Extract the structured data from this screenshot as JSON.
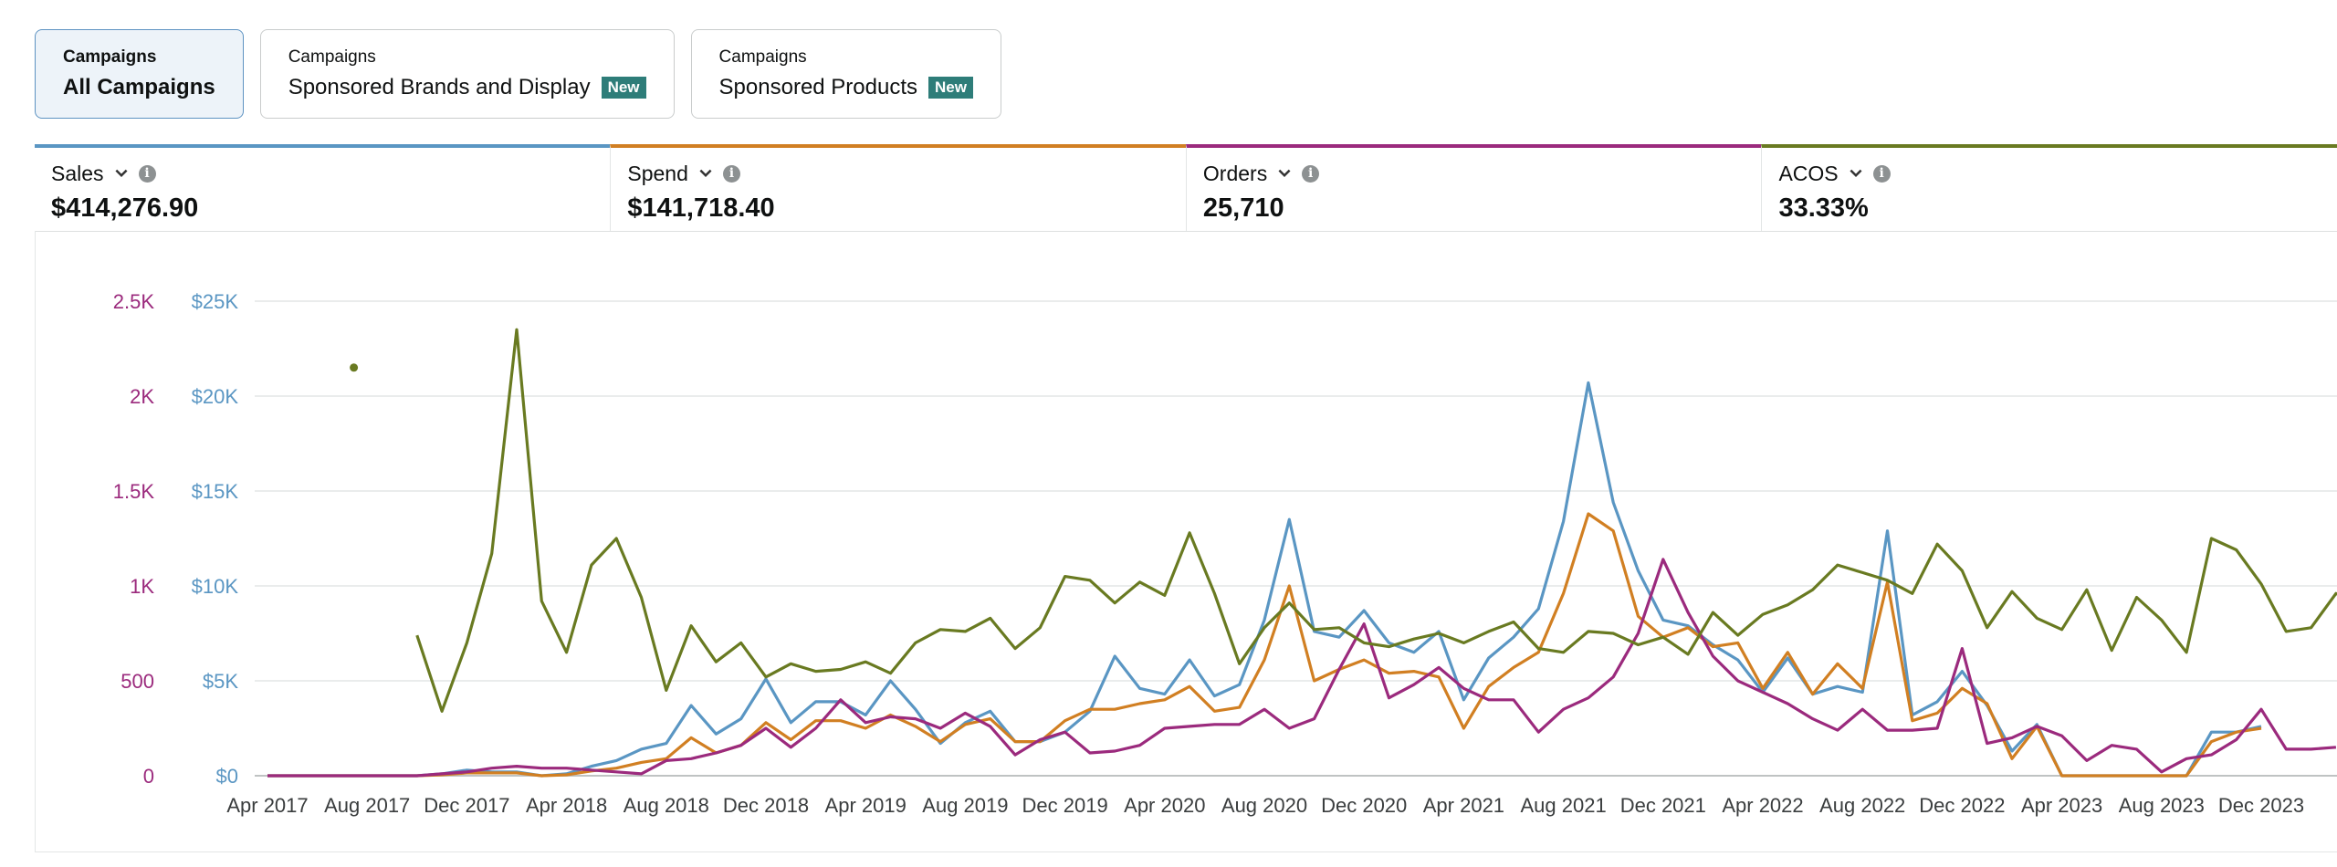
{
  "tabs": [
    {
      "small": "Campaigns",
      "main": "All Campaigns",
      "badge": "",
      "active": true
    },
    {
      "small": "Campaigns",
      "main": "Sponsored Brands and Display",
      "badge": "New",
      "active": false
    },
    {
      "small": "Campaigns",
      "main": "Sponsored Products",
      "badge": "New",
      "active": false
    }
  ],
  "metrics": [
    {
      "label": "Sales",
      "value": "$414,276.90",
      "color": "#5a96c3"
    },
    {
      "label": "Spend",
      "value": "$141,718.40",
      "color": "#d17f22"
    },
    {
      "label": "Orders",
      "value": "25,710",
      "color": "#9b2a7d"
    },
    {
      "label": "ACOS",
      "value": "33.33%",
      "color": "#697a21"
    }
  ],
  "chart_data": {
    "type": "line",
    "x_tick_labels": [
      "Apr 2017",
      "Aug 2017",
      "Dec 2017",
      "Apr 2018",
      "Aug 2018",
      "Dec 2018",
      "Apr 2019",
      "Aug 2019",
      "Dec 2019",
      "Apr 2020",
      "Aug 2020",
      "Dec 2020",
      "Apr 2021",
      "Aug 2021",
      "Dec 2021",
      "Apr 2022",
      "Aug 2022",
      "Dec 2022",
      "Apr 2023",
      "Aug 2023",
      "Dec 2023",
      "A"
    ],
    "y_left_orders_ticks": [
      "0",
      "500",
      "1K",
      "1.5K",
      "2K",
      "2.5K"
    ],
    "y_left_dollar_ticks": [
      "$0",
      "$5K",
      "$10K",
      "$15K",
      "$20K",
      "$25K"
    ],
    "ylim_dollars": [
      0,
      25000
    ],
    "ylim_orders": [
      0,
      2500
    ],
    "colors": {
      "sales": "#5a96c3",
      "spend": "#d17f22",
      "orders": "#9b2a7d",
      "acos": "#697a21"
    },
    "series": [
      {
        "key": "sales",
        "axis": "dollars",
        "values": [
          0,
          0,
          0,
          0,
          0,
          0,
          0,
          100,
          300,
          200,
          200,
          0,
          100,
          500,
          800,
          1400,
          1700,
          3700,
          2200,
          3000,
          5100,
          2800,
          3900,
          3900,
          3200,
          5000,
          3500,
          1700,
          2800,
          3400,
          1800,
          1800,
          2300,
          3400,
          6300,
          4600,
          4300,
          6100,
          4200,
          4800,
          8200,
          13500,
          7600,
          7300,
          8700,
          7000,
          6500,
          7600,
          4000,
          6200,
          7300,
          8800,
          13400,
          20700,
          14400,
          10800,
          8200,
          7900,
          6900,
          6100,
          4400,
          6200,
          4300,
          4700,
          4400,
          12900,
          3200,
          3900,
          5500,
          3700,
          1300,
          2700,
          0,
          0,
          0,
          0,
          0,
          0,
          2300,
          2300,
          2600
        ]
      },
      {
        "key": "spend",
        "axis": "dollars",
        "values": [
          0,
          0,
          0,
          0,
          0,
          0,
          0,
          50,
          150,
          150,
          150,
          0,
          50,
          250,
          400,
          700,
          900,
          2000,
          1200,
          1600,
          2800,
          1900,
          2900,
          2900,
          2500,
          3200,
          2600,
          1800,
          2700,
          3000,
          1800,
          1800,
          2900,
          3500,
          3500,
          3800,
          4000,
          4700,
          3400,
          3600,
          6100,
          10000,
          5000,
          5600,
          6100,
          5400,
          5500,
          5200,
          2500,
          4700,
          5700,
          6500,
          9600,
          13800,
          12900,
          8400,
          7300,
          7800,
          6800,
          7000,
          4600,
          6500,
          4300,
          5900,
          4600,
          10200,
          2900,
          3300,
          4600,
          3800,
          900,
          2600,
          0,
          0,
          0,
          0,
          0,
          0,
          1800,
          2300,
          2500
        ]
      },
      {
        "key": "orders",
        "axis": "orders",
        "values": [
          0,
          0,
          0,
          0,
          0,
          0,
          0,
          10,
          20,
          40,
          50,
          40,
          40,
          30,
          20,
          10,
          80,
          90,
          120,
          160,
          250,
          150,
          250,
          400,
          280,
          310,
          300,
          250,
          330,
          260,
          110,
          190,
          230,
          120,
          130,
          160,
          250,
          260,
          270,
          270,
          350,
          250,
          300,
          560,
          800,
          410,
          480,
          570,
          460,
          400,
          400,
          230,
          350,
          410,
          520,
          750,
          1140,
          860,
          630,
          500,
          440,
          380,
          300,
          240,
          350,
          240,
          240,
          250,
          670,
          170,
          200,
          260,
          210,
          80,
          160,
          140,
          20,
          90,
          110,
          190,
          350,
          140,
          140,
          150
        ]
      },
      {
        "key": "acos",
        "axis": "percent",
        "values": [
          null,
          null,
          null,
          null,
          null,
          null,
          740,
          340,
          700,
          1170,
          2350,
          920,
          650,
          1110,
          1250,
          940,
          450,
          790,
          600,
          700,
          520,
          590,
          550,
          560,
          600,
          540,
          700,
          770,
          760,
          830,
          670,
          780,
          1050,
          1030,
          910,
          1020,
          950,
          1280,
          960,
          590,
          780,
          910,
          770,
          780,
          700,
          680,
          720,
          750,
          700,
          760,
          810,
          670,
          650,
          760,
          750,
          690,
          730,
          640,
          860,
          740,
          850,
          900,
          980,
          1110,
          1070,
          1030,
          960,
          1220,
          1080,
          780,
          970,
          830,
          770,
          980,
          660,
          940,
          820,
          650,
          1250,
          1190,
          1010,
          760,
          780,
          960,
          900
        ],
        "isolated_point": {
          "index": 2,
          "value": 2150
        }
      }
    ]
  }
}
